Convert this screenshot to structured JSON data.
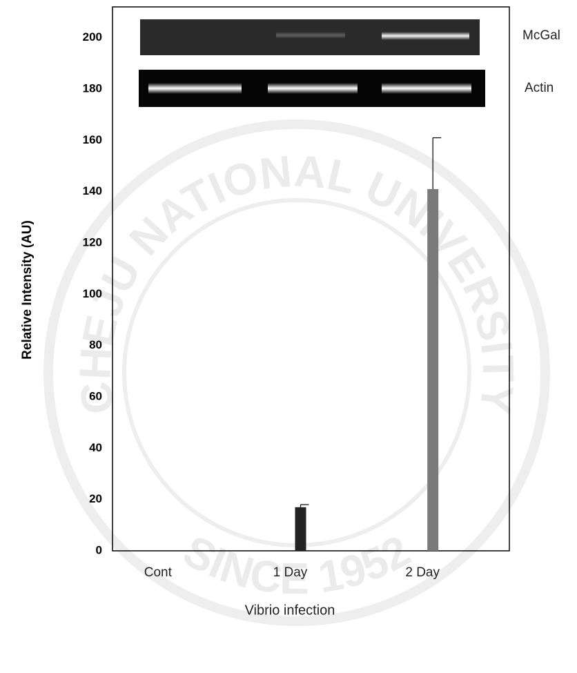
{
  "chart_data": {
    "type": "bar",
    "categories": [
      "Cont",
      "1 Day",
      "2 Day"
    ],
    "values": [
      0,
      17,
      141
    ],
    "errors": [
      null,
      1,
      20
    ],
    "colors": [
      "#222222",
      "#222222",
      "#7a7a7a"
    ],
    "ylabel": "Relative Intensity (AU)",
    "xlabel": "Vibrio infection",
    "ylim": [
      0,
      212
    ],
    "yticks": [
      0,
      20,
      40,
      60,
      80,
      100,
      120,
      140,
      160,
      180,
      200
    ],
    "grid": false,
    "gel_labels": [
      "McGal",
      "Actin"
    ],
    "watermark": {
      "top": "CHEJU NATIONAL UNIVERSITY",
      "bottom": "SINCE 1952"
    }
  }
}
